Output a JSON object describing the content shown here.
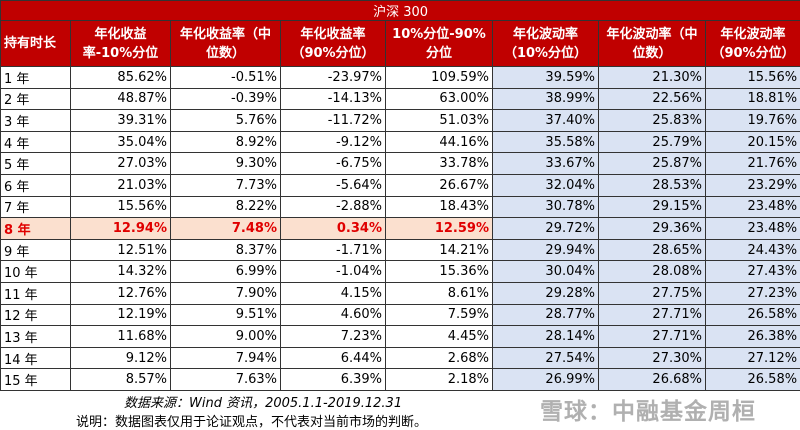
{
  "table": {
    "title": "沪深 300",
    "headers": [
      "持有时长",
      "年化收益率-10%分位",
      "年化收益率（中位数）",
      "年化收益率（90%分位）",
      "10%分位-90%分位",
      "年化波动率（10%分位）",
      "年化波动率（中位数）",
      "年化波动率（90%分位）"
    ],
    "rows": [
      [
        "1 年",
        "85.62%",
        "-0.51%",
        "-23.97%",
        "109.59%",
        "39.59%",
        "21.30%",
        "15.56%"
      ],
      [
        "2 年",
        "48.87%",
        "-0.39%",
        "-14.13%",
        "63.00%",
        "38.99%",
        "22.56%",
        "18.81%"
      ],
      [
        "3 年",
        "39.31%",
        "5.76%",
        "-11.72%",
        "51.03%",
        "37.40%",
        "25.83%",
        "19.76%"
      ],
      [
        "4 年",
        "35.04%",
        "8.92%",
        "-9.12%",
        "44.16%",
        "35.58%",
        "25.79%",
        "20.15%"
      ],
      [
        "5 年",
        "27.03%",
        "9.30%",
        "-6.75%",
        "33.78%",
        "33.67%",
        "25.87%",
        "21.76%"
      ],
      [
        "6 年",
        "21.03%",
        "7.73%",
        "-5.64%",
        "26.67%",
        "32.04%",
        "28.53%",
        "23.29%"
      ],
      [
        "7 年",
        "15.56%",
        "8.22%",
        "-2.88%",
        "18.43%",
        "30.78%",
        "29.15%",
        "23.48%"
      ],
      [
        "8 年",
        "12.94%",
        "7.48%",
        "0.34%",
        "12.59%",
        "29.72%",
        "29.36%",
        "23.48%"
      ],
      [
        "9 年",
        "12.51%",
        "8.37%",
        "-1.71%",
        "14.21%",
        "29.94%",
        "28.65%",
        "24.43%"
      ],
      [
        "10 年",
        "14.32%",
        "6.99%",
        "-1.04%",
        "15.36%",
        "30.04%",
        "28.08%",
        "27.43%"
      ],
      [
        "11 年",
        "12.76%",
        "7.90%",
        "4.15%",
        "8.61%",
        "29.28%",
        "27.75%",
        "27.23%"
      ],
      [
        "12 年",
        "12.19%",
        "9.51%",
        "4.60%",
        "7.59%",
        "28.77%",
        "27.71%",
        "26.58%"
      ],
      [
        "13 年",
        "11.68%",
        "9.00%",
        "7.23%",
        "4.45%",
        "28.14%",
        "27.71%",
        "26.38%"
      ],
      [
        "14 年",
        "9.12%",
        "7.94%",
        "6.44%",
        "2.68%",
        "27.54%",
        "27.30%",
        "27.12%"
      ],
      [
        "15 年",
        "8.57%",
        "7.63%",
        "6.39%",
        "2.18%",
        "26.99%",
        "26.68%",
        "26.58%"
      ]
    ]
  },
  "footer": {
    "source": "数据来源：Wind 资讯，2005.1.1-2019.12.31",
    "note": "说明：数据图表仅用于论证观点，不代表对当前市场的判断。",
    "watermark": "雪球：中融基金周桓"
  }
}
